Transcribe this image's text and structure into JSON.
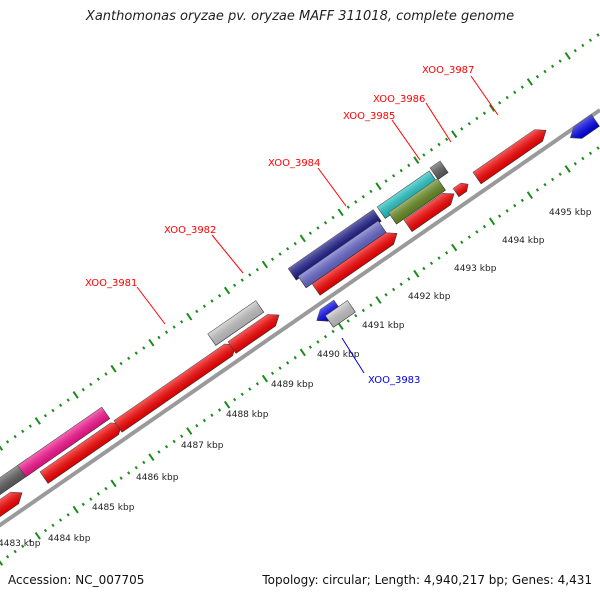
{
  "title": "Xanthomonas oryzae pv. oryzae MAFF 311018, complete genome",
  "accession": "Accession: NC_007705",
  "summary": "Topology: circular; Length: 4,940,217 bp; Genes: 4,431",
  "ruler_ticks": [
    "4483 kbp",
    "4484 kbp",
    "4485 kbp",
    "4486 kbp",
    "4487 kbp",
    "4488 kbp",
    "4489 kbp",
    "4490 kbp",
    "4491 kbp",
    "4492 kbp",
    "4493 kbp",
    "4494 kbp",
    "4495 kbp"
  ],
  "gene_labels": {
    "XOO_3981": "XOO_3981",
    "XOO_3982": "XOO_3982",
    "XOO_3983": "XOO_3983",
    "XOO_3984": "XOO_3984",
    "XOO_3985": "XOO_3985",
    "XOO_3986": "XOO_3986",
    "XOO_3987": "XOO_3987"
  },
  "colors": {
    "red": "#ff0000",
    "magenta": "#ff1493",
    "navy": "#1a1a8c",
    "slate": "#6a6ad0",
    "cyan": "#20c8c8",
    "olive": "#6b8e23",
    "gray": "#c8c8c8",
    "darkgray": "#606060",
    "blue": "#0000ee",
    "green": "#1a8c1a",
    "backbone": "#9a9a9a"
  }
}
